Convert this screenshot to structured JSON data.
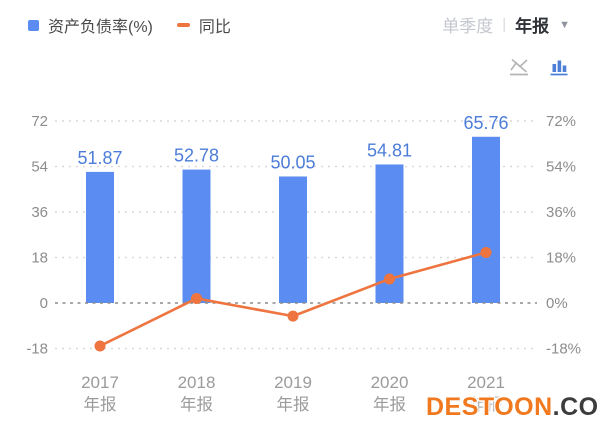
{
  "header": {
    "legend": [
      {
        "label": "资产负债率(%)",
        "marker": "square",
        "color": "#5a8cf2"
      },
      {
        "label": "同比",
        "marker": "dash",
        "color": "#ee7540"
      }
    ],
    "period_switcher": {
      "options": [
        "单季度",
        "年报"
      ],
      "selected": "年报",
      "separator": "|",
      "caret": "▼"
    },
    "view_icons": [
      {
        "name": "line-chart-disabled-icon",
        "active": false,
        "color": "#b4b4b4"
      },
      {
        "name": "bar-chart-icon",
        "active": true,
        "color": "#4d7fd6"
      }
    ]
  },
  "watermark": {
    "primary": "DESTOON",
    "secondary": ".COM",
    "primary_color": "#f0791f",
    "secondary_color": "#3c3c3c"
  },
  "chart_data": {
    "type": "bar+line",
    "title": "",
    "categories": [
      {
        "year": "2017",
        "period": "年报"
      },
      {
        "year": "2018",
        "period": "年报"
      },
      {
        "year": "2019",
        "period": "年报"
      },
      {
        "year": "2020",
        "period": "年报"
      },
      {
        "year": "2021",
        "period": "年报"
      }
    ],
    "series": [
      {
        "name": "资产负债率(%)",
        "type": "bar",
        "axis": "left",
        "color": "#5a8cf2",
        "label_color": "#4c7dd8",
        "values": [
          51.87,
          52.78,
          50.05,
          54.81,
          65.76
        ],
        "labels_shown": true
      },
      {
        "name": "同比",
        "type": "line",
        "axis": "right",
        "color": "#ee7540",
        "values": [
          -17.0,
          1.8,
          -5.2,
          9.5,
          20.0
        ],
        "values_estimated": true,
        "labels_shown": false
      }
    ],
    "y_axis_left": {
      "ticks": [
        72,
        54,
        36,
        18,
        0,
        -18
      ],
      "suffix": ""
    },
    "y_axis_right": {
      "ticks": [
        72,
        54,
        36,
        18,
        0,
        -18
      ],
      "suffix": "%"
    },
    "grid": {
      "style": "dashed",
      "zero_line_emphasized": true
    },
    "ylim": [
      -22,
      82
    ],
    "legend_position": "top-left"
  }
}
